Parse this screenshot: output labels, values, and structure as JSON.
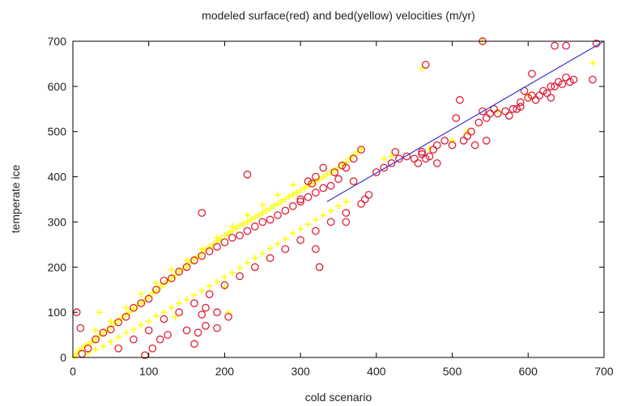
{
  "chart_data": {
    "type": "scatter",
    "title": "modeled surface(red) and bed(yellow) velocities (m/yr)",
    "xlabel": "cold scenario",
    "ylabel": "temperate ice",
    "xlim": [
      0,
      700
    ],
    "ylim": [
      0,
      700
    ],
    "xticks": [
      0,
      100,
      200,
      300,
      400,
      500,
      600,
      700
    ],
    "yticks": [
      0,
      100,
      200,
      300,
      400,
      500,
      600,
      700
    ],
    "tick_labels_x": [
      "0",
      "100",
      "200",
      "300",
      "400",
      "500",
      "600",
      "700"
    ],
    "tick_labels_y": [
      "0",
      "100",
      "200",
      "300",
      "400",
      "500",
      "600",
      "700"
    ],
    "grid": false,
    "colors": {
      "surface": "#dd1f3a",
      "bed": "#ffff00",
      "line": "#3535cc"
    },
    "reference_line": {
      "x": [
        335,
        700
      ],
      "y": [
        345,
        700
      ]
    },
    "series": [
      {
        "marker": "circle",
        "color": "#dd1f3a",
        "points": [
          [
            5,
            100
          ],
          [
            10,
            65
          ],
          [
            12,
            8
          ],
          [
            20,
            20
          ],
          [
            30,
            40
          ],
          [
            40,
            55
          ],
          [
            50,
            62
          ],
          [
            60,
            78
          ],
          [
            70,
            90
          ],
          [
            80,
            110
          ],
          [
            90,
            120
          ],
          [
            100,
            130
          ],
          [
            110,
            150
          ],
          [
            120,
            170
          ],
          [
            130,
            175
          ],
          [
            140,
            190
          ],
          [
            150,
            200
          ],
          [
            160,
            215
          ],
          [
            170,
            225
          ],
          [
            180,
            235
          ],
          [
            190,
            245
          ],
          [
            200,
            255
          ],
          [
            210,
            265
          ],
          [
            220,
            270
          ],
          [
            230,
            280
          ],
          [
            240,
            290
          ],
          [
            250,
            300
          ],
          [
            260,
            305
          ],
          [
            270,
            315
          ],
          [
            280,
            325
          ],
          [
            290,
            335
          ],
          [
            300,
            345
          ],
          [
            310,
            355
          ],
          [
            320,
            365
          ],
          [
            330,
            375
          ],
          [
            340,
            380
          ],
          [
            350,
            395
          ],
          [
            360,
            420
          ],
          [
            370,
            440
          ],
          [
            380,
            460
          ],
          [
            60,
            20
          ],
          [
            80,
            40
          ],
          [
            100,
            60
          ],
          [
            120,
            85
          ],
          [
            140,
            100
          ],
          [
            160,
            120
          ],
          [
            180,
            140
          ],
          [
            200,
            160
          ],
          [
            220,
            180
          ],
          [
            240,
            200
          ],
          [
            260,
            220
          ],
          [
            280,
            240
          ],
          [
            300,
            260
          ],
          [
            320,
            280
          ],
          [
            340,
            300
          ],
          [
            360,
            320
          ],
          [
            380,
            340
          ],
          [
            95,
            5
          ],
          [
            105,
            20
          ],
          [
            115,
            40
          ],
          [
            125,
            50
          ],
          [
            150,
            60
          ],
          [
            165,
            55
          ],
          [
            175,
            70
          ],
          [
            190,
            65
          ],
          [
            205,
            90
          ],
          [
            175,
            110
          ],
          [
            190,
            100
          ],
          [
            160,
            30
          ],
          [
            170,
            95
          ],
          [
            230,
            405
          ],
          [
            170,
            320
          ],
          [
            320,
            240
          ],
          [
            325,
            200
          ],
          [
            360,
            300
          ],
          [
            300,
            350
          ],
          [
            310,
            390
          ],
          [
            315,
            385
          ],
          [
            320,
            400
          ],
          [
            330,
            420
          ],
          [
            345,
            410
          ],
          [
            355,
            425
          ],
          [
            370,
            390
          ],
          [
            385,
            350
          ],
          [
            390,
            360
          ],
          [
            400,
            410
          ],
          [
            410,
            420
          ],
          [
            420,
            430
          ],
          [
            425,
            455
          ],
          [
            430,
            440
          ],
          [
            440,
            445
          ],
          [
            450,
            440
          ],
          [
            455,
            430
          ],
          [
            460,
            450
          ],
          [
            465,
            440
          ],
          [
            470,
            445
          ],
          [
            475,
            460
          ],
          [
            480,
            470
          ],
          [
            490,
            480
          ],
          [
            500,
            470
          ],
          [
            505,
            530
          ],
          [
            510,
            570
          ],
          [
            515,
            480
          ],
          [
            520,
            490
          ],
          [
            525,
            500
          ],
          [
            530,
            470
          ],
          [
            535,
            520
          ],
          [
            540,
            545
          ],
          [
            545,
            530
          ],
          [
            550,
            540
          ],
          [
            555,
            550
          ],
          [
            560,
            540
          ],
          [
            570,
            545
          ],
          [
            575,
            535
          ],
          [
            580,
            550
          ],
          [
            585,
            550
          ],
          [
            590,
            565
          ],
          [
            595,
            590
          ],
          [
            600,
            575
          ],
          [
            605,
            580
          ],
          [
            610,
            570
          ],
          [
            615,
            580
          ],
          [
            620,
            590
          ],
          [
            625,
            585
          ],
          [
            630,
            600
          ],
          [
            635,
            600
          ],
          [
            640,
            610
          ],
          [
            645,
            605
          ],
          [
            650,
            620
          ],
          [
            655,
            610
          ],
          [
            660,
            615
          ],
          [
            635,
            690
          ],
          [
            650,
            690
          ],
          [
            690,
            695
          ],
          [
            685,
            615
          ],
          [
            540,
            700
          ],
          [
            465,
            648
          ],
          [
            605,
            628
          ],
          [
            460,
            455
          ],
          [
            480,
            430
          ],
          [
            545,
            480
          ],
          [
            590,
            555
          ],
          [
            630,
            575
          ]
        ]
      },
      {
        "marker": "plus",
        "color": "#ffff00",
        "points": [
          [
            2,
            2
          ],
          [
            5,
            8
          ],
          [
            8,
            15
          ],
          [
            12,
            20
          ],
          [
            15,
            25
          ],
          [
            20,
            30
          ],
          [
            25,
            35
          ],
          [
            30,
            40
          ],
          [
            35,
            48
          ],
          [
            40,
            55
          ],
          [
            45,
            60
          ],
          [
            50,
            68
          ],
          [
            55,
            75
          ],
          [
            60,
            82
          ],
          [
            65,
            88
          ],
          [
            70,
            95
          ],
          [
            75,
            100
          ],
          [
            80,
            108
          ],
          [
            85,
            115
          ],
          [
            90,
            120
          ],
          [
            95,
            128
          ],
          [
            100,
            135
          ],
          [
            105,
            142
          ],
          [
            110,
            148
          ],
          [
            115,
            155
          ],
          [
            120,
            162
          ],
          [
            125,
            170
          ],
          [
            130,
            175
          ],
          [
            135,
            182
          ],
          [
            140,
            190
          ],
          [
            145,
            196
          ],
          [
            150,
            202
          ],
          [
            155,
            210
          ],
          [
            160,
            218
          ],
          [
            165,
            224
          ],
          [
            170,
            230
          ],
          [
            175,
            238
          ],
          [
            180,
            245
          ],
          [
            185,
            250
          ],
          [
            190,
            258
          ],
          [
            195,
            262
          ],
          [
            200,
            270
          ],
          [
            205,
            275
          ],
          [
            210,
            280
          ],
          [
            215,
            286
          ],
          [
            220,
            292
          ],
          [
            225,
            296
          ],
          [
            230,
            300
          ],
          [
            235,
            305
          ],
          [
            240,
            310
          ],
          [
            245,
            315
          ],
          [
            250,
            320
          ],
          [
            255,
            325
          ],
          [
            260,
            330
          ],
          [
            265,
            336
          ],
          [
            270,
            340
          ],
          [
            275,
            345
          ],
          [
            280,
            350
          ],
          [
            285,
            356
          ],
          [
            290,
            360
          ],
          [
            295,
            365
          ],
          [
            300,
            370
          ],
          [
            305,
            375
          ],
          [
            310,
            380
          ],
          [
            315,
            386
          ],
          [
            320,
            390
          ],
          [
            325,
            395
          ],
          [
            330,
            400
          ],
          [
            335,
            405
          ],
          [
            340,
            410
          ],
          [
            345,
            415
          ],
          [
            350,
            420
          ],
          [
            355,
            428
          ],
          [
            360,
            432
          ],
          [
            365,
            440
          ],
          [
            370,
            448
          ],
          [
            375,
            455
          ],
          [
            380,
            462
          ],
          [
            20,
            10
          ],
          [
            30,
            18
          ],
          [
            40,
            25
          ],
          [
            50,
            35
          ],
          [
            60,
            45
          ],
          [
            70,
            55
          ],
          [
            80,
            62
          ],
          [
            90,
            72
          ],
          [
            100,
            80
          ],
          [
            110,
            92
          ],
          [
            120,
            100
          ],
          [
            130,
            110
          ],
          [
            140,
            120
          ],
          [
            150,
            128
          ],
          [
            160,
            138
          ],
          [
            170,
            148
          ],
          [
            180,
            158
          ],
          [
            190,
            168
          ],
          [
            200,
            178
          ],
          [
            210,
            188
          ],
          [
            220,
            198
          ],
          [
            230,
            210
          ],
          [
            240,
            220
          ],
          [
            250,
            230
          ],
          [
            260,
            242
          ],
          [
            270,
            252
          ],
          [
            280,
            262
          ],
          [
            290,
            275
          ],
          [
            300,
            285
          ],
          [
            310,
            295
          ],
          [
            320,
            305
          ],
          [
            330,
            315
          ],
          [
            340,
            325
          ],
          [
            350,
            335
          ],
          [
            360,
            345
          ],
          [
            30,
            60
          ],
          [
            50,
            80
          ],
          [
            70,
            110
          ],
          [
            90,
            140
          ],
          [
            110,
            165
          ],
          [
            130,
            195
          ],
          [
            150,
            215
          ],
          [
            170,
            240
          ],
          [
            190,
            265
          ],
          [
            210,
            290
          ],
          [
            230,
            315
          ],
          [
            250,
            338
          ],
          [
            270,
            360
          ],
          [
            290,
            382
          ],
          [
            35,
            100
          ],
          [
            205,
            100
          ],
          [
            200,
            155
          ],
          [
            135,
            90
          ],
          [
            420,
            445
          ],
          [
            410,
            440
          ],
          [
            460,
            640
          ],
          [
            685,
            652
          ],
          [
            540,
            700
          ],
          [
            470,
            462
          ],
          [
            500,
            480
          ],
          [
            520,
            500
          ],
          [
            560,
            545
          ],
          [
            600,
            580
          ]
        ]
      }
    ]
  }
}
